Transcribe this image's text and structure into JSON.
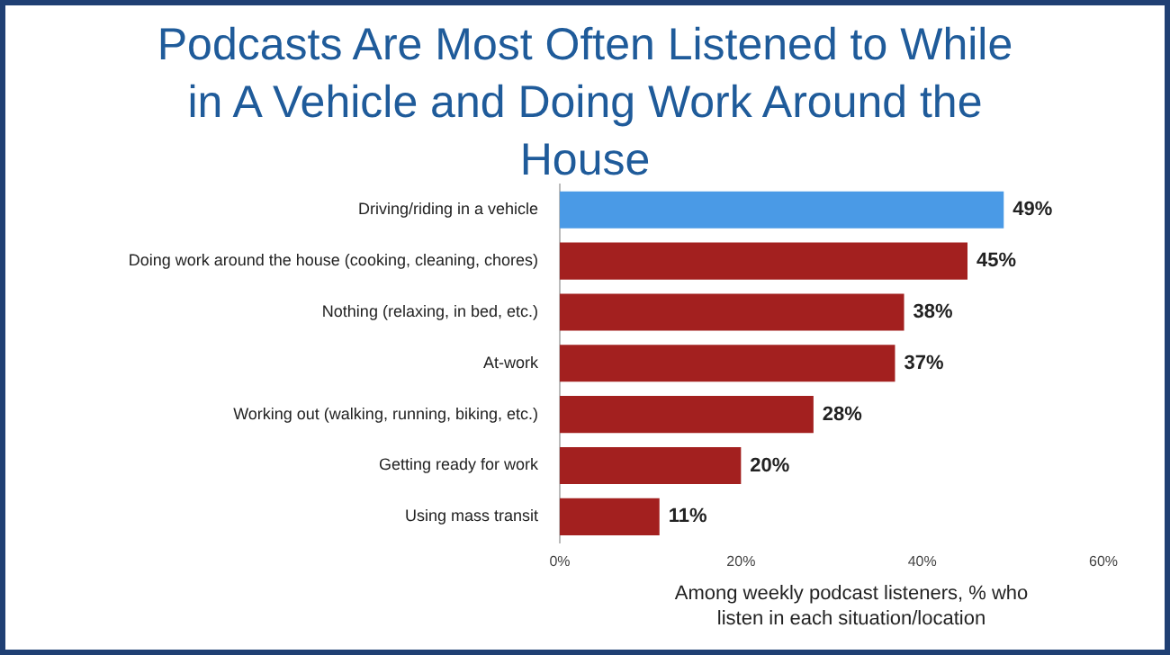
{
  "chart_data": {
    "type": "bar",
    "orientation": "horizontal",
    "title": "Podcasts Are Most Often Listened to While in A Vehicle and Doing Work Around the House",
    "xlabel": "Among weekly podcast listeners, % who listen in each situation/location",
    "categories": [
      "Driving/riding in a vehicle",
      "Doing work around the house (cooking, cleaning, chores)",
      "Nothing (relaxing, in bed, etc.)",
      "At-work",
      "Working out (walking, running, biking, etc.)",
      "Getting ready for work",
      "Using mass transit"
    ],
    "values": [
      49,
      45,
      38,
      37,
      28,
      20,
      11
    ],
    "colors": [
      "#4a9ae6",
      "#a3201f",
      "#a3201f",
      "#a3201f",
      "#a3201f",
      "#a3201f",
      "#a3201f"
    ],
    "value_labels": [
      "49%",
      "45%",
      "38%",
      "37%",
      "28%",
      "20%",
      "11%"
    ],
    "xlim": [
      0,
      60
    ],
    "xticks": [
      {
        "value": 0,
        "label": "0%"
      },
      {
        "value": 20,
        "label": "20%"
      },
      {
        "value": 40,
        "label": "40%"
      },
      {
        "value": 60,
        "label": "60%"
      }
    ],
    "grid": false,
    "legend": false
  }
}
